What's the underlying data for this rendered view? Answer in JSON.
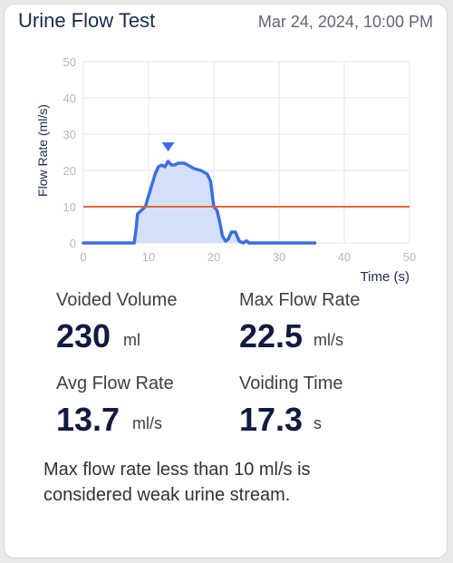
{
  "header": {
    "title": "Urine Flow Test",
    "datetime": "Mar 24, 2024, 10:00 PM"
  },
  "chart_data": {
    "type": "area",
    "ylabel": "Flow Rate (ml/s)",
    "xlabel": "Time (s)",
    "xlim": [
      0,
      50
    ],
    "ylim": [
      0,
      50
    ],
    "x_ticks": [
      0,
      10,
      20,
      30,
      40,
      50
    ],
    "y_ticks": [
      0,
      10,
      20,
      30,
      40,
      50
    ],
    "reference_line": {
      "y": 10,
      "color": "#e8653a"
    },
    "max_marker": {
      "x": 13,
      "y": 22.5
    },
    "series": [
      {
        "color": "#3b6fe0",
        "fill": "#d3e0f7",
        "points": [
          [
            0,
            0
          ],
          [
            7.8,
            0
          ],
          [
            8.1,
            4
          ],
          [
            8.3,
            8
          ],
          [
            8.9,
            9
          ],
          [
            9.5,
            10
          ],
          [
            10,
            13
          ],
          [
            10.5,
            16
          ],
          [
            11,
            19
          ],
          [
            11.5,
            21
          ],
          [
            12,
            21.5
          ],
          [
            12.5,
            21
          ],
          [
            13,
            22.5
          ],
          [
            13.5,
            21.5
          ],
          [
            14,
            21.5
          ],
          [
            14.5,
            22
          ],
          [
            15,
            22
          ],
          [
            15.5,
            22
          ],
          [
            16,
            21.5
          ],
          [
            17,
            20.5
          ],
          [
            18,
            20
          ],
          [
            19,
            19
          ],
          [
            19.5,
            17
          ],
          [
            20,
            10
          ],
          [
            20.5,
            9
          ],
          [
            21,
            5
          ],
          [
            21.3,
            2
          ],
          [
            21.8,
            0.5
          ],
          [
            22.2,
            1
          ],
          [
            22.7,
            3
          ],
          [
            23.3,
            3
          ],
          [
            23.9,
            0.5
          ],
          [
            24.5,
            0
          ],
          [
            25,
            0.6
          ],
          [
            25.4,
            0
          ]
        ]
      },
      {
        "color": "#3b6fe0",
        "points": [
          [
            25.4,
            0
          ],
          [
            35.5,
            0
          ]
        ]
      }
    ]
  },
  "stats": {
    "voided_volume": {
      "label": "Voided Volume",
      "value": "230",
      "unit": "ml"
    },
    "max_flow_rate": {
      "label": "Max Flow Rate",
      "value": "22.5",
      "unit": "ml/s"
    },
    "avg_flow_rate": {
      "label": "Avg Flow Rate",
      "value": "13.7",
      "unit": "ml/s"
    },
    "voiding_time": {
      "label": "Voiding Time",
      "value": "17.3",
      "unit": "s"
    }
  },
  "note": "Max flow rate less than 10 ml/s is considered weak urine stream."
}
